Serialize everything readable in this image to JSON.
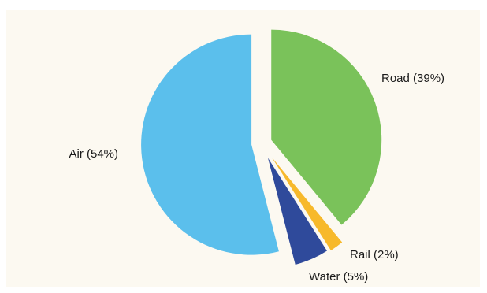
{
  "chart_data": {
    "type": "pie",
    "title": "",
    "legend": "none",
    "slices": [
      {
        "label": "Road (39%)",
        "value": 39,
        "color": "#7ac25a"
      },
      {
        "label": "Rail (2%)",
        "value": 2,
        "color": "#f7b92b"
      },
      {
        "label": "Water (5%)",
        "value": 5,
        "color": "#2f4a9b"
      },
      {
        "label": "Air (54%)",
        "value": 54,
        "color": "#5bbfec"
      }
    ]
  }
}
